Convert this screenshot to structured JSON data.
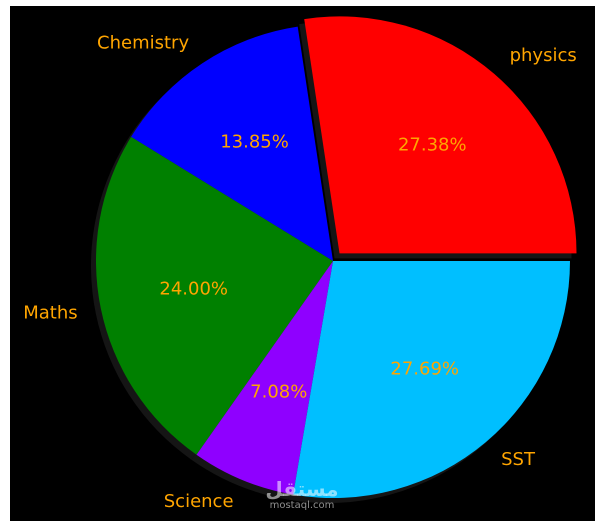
{
  "chart_data": {
    "type": "pie",
    "slices": [
      {
        "label": "physics",
        "value": 27.38,
        "pct_label": "27.38%",
        "color": "#ff0000",
        "exploded": true
      },
      {
        "label": "Chemistry",
        "value": 13.85,
        "pct_label": "13.85%",
        "color": "#0000ff",
        "exploded": false
      },
      {
        "label": "Maths",
        "value": 24.0,
        "pct_label": "24.00%",
        "color": "#008000",
        "exploded": false
      },
      {
        "label": "Science",
        "value": 7.08,
        "pct_label": "7.08%",
        "color": "#8f00ff",
        "exploded": false
      },
      {
        "label": "SST",
        "value": 27.69,
        "pct_label": "27.69%",
        "color": "#00bfff",
        "exploded": false
      }
    ],
    "start_angle_deg": 0,
    "direction": "counterclockwise",
    "shadow": true,
    "background": "#000000",
    "label_color": "#ffa500"
  },
  "watermark": {
    "arabic": "مستقل",
    "text": "mostaql.com"
  }
}
